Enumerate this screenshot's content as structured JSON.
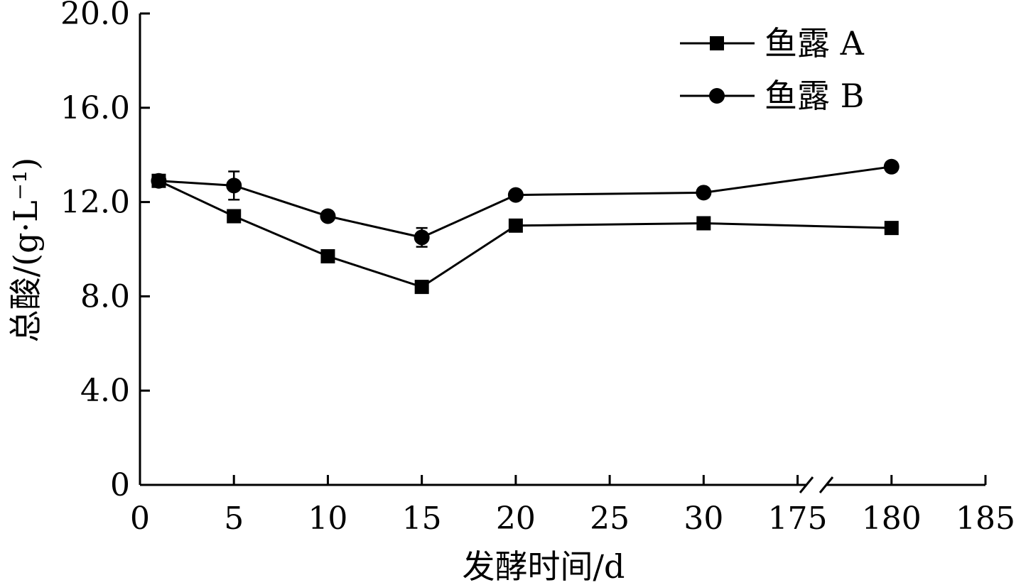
{
  "chart_data": {
    "type": "line",
    "title": "",
    "xlabel": "发酵时间/d",
    "ylabel": "总酸/(g·L⁻¹)",
    "x_tick_labels": [
      "0",
      "5",
      "10",
      "15",
      "20",
      "25",
      "30",
      "175",
      "180",
      "185"
    ],
    "y_tick_labels": [
      "0",
      "4.0",
      "8.0",
      "12.0",
      "16.0",
      "20.0"
    ],
    "y_ticks": [
      0,
      4,
      8,
      12,
      16,
      20
    ],
    "ylim": [
      0,
      20
    ],
    "x_axis_break": "between 30 and 175",
    "legend_position": "top-right",
    "series": [
      {
        "name": "鱼露 A",
        "marker": "square",
        "x": [
          1,
          5,
          10,
          15,
          20,
          30,
          180
        ],
        "values": [
          12.9,
          11.4,
          9.7,
          8.4,
          11.0,
          11.1,
          10.9
        ],
        "error": [
          0.1,
          0.1,
          0.1,
          0.1,
          0.1,
          0.1,
          0.1
        ]
      },
      {
        "name": "鱼露 B",
        "marker": "circle",
        "x": [
          1,
          5,
          10,
          15,
          20,
          30,
          180
        ],
        "values": [
          12.9,
          12.7,
          11.4,
          10.5,
          12.3,
          12.4,
          13.5
        ],
        "error": [
          0.1,
          0.6,
          0.1,
          0.4,
          0.1,
          0.2,
          0.2
        ]
      }
    ]
  }
}
